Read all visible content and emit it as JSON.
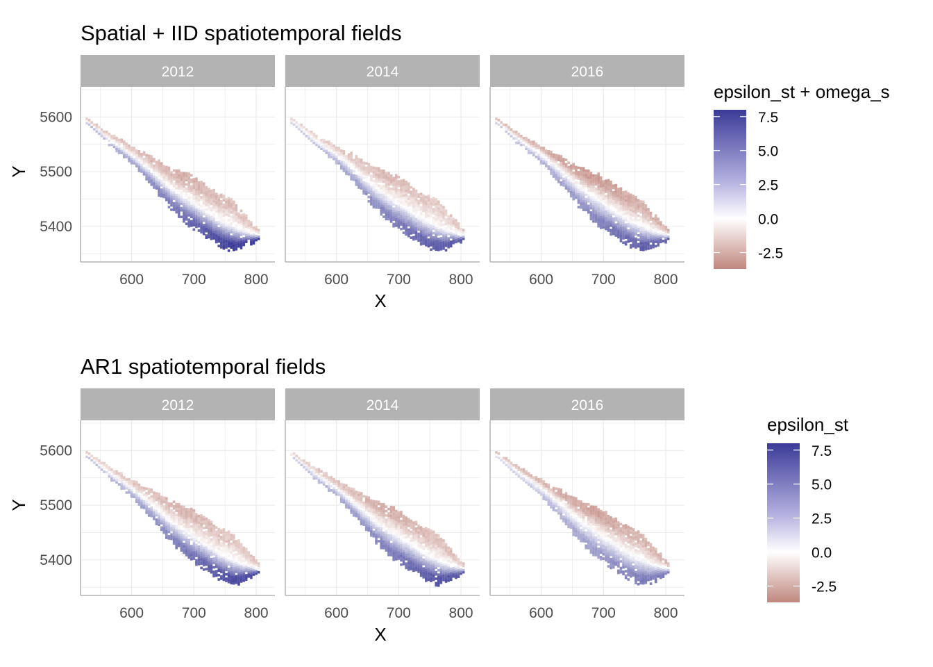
{
  "chart_data": [
    {
      "type": "heatmap",
      "title": "Spatial + IID spatiotemporal fields",
      "facets": [
        "2012",
        "2014",
        "2016"
      ],
      "xlabel": "X",
      "ylabel": "Y",
      "xlim": [
        518,
        830
      ],
      "ylim": [
        5335,
        5655
      ],
      "xticks": [
        "600",
        "700",
        "800"
      ],
      "yticks": [
        "5400",
        "5500",
        "5600"
      ],
      "grid": true,
      "legend": {
        "title": "epsilon_st + omega_s",
        "position": "right",
        "ticks": [
          "7.5",
          "5.0",
          "2.5",
          "0.0",
          "-2.5"
        ],
        "range": [
          -3.7,
          8.0
        ],
        "low_color": "#c0877e",
        "mid_color": "#ffffff",
        "high_color": "#3b3b98"
      },
      "field_pattern": [
        {
          "year": "2012",
          "west_max": 7.8,
          "east_min": -2.4
        },
        {
          "year": "2014",
          "west_max": 6.6,
          "east_min": -2.0
        },
        {
          "year": "2016",
          "west_max": 6.4,
          "east_min": -3.0
        }
      ]
    },
    {
      "type": "heatmap",
      "title": "AR1 spatiotemporal fields",
      "facets": [
        "2012",
        "2014",
        "2016"
      ],
      "xlabel": "X",
      "ylabel": "Y",
      "xlim": [
        518,
        830
      ],
      "ylim": [
        5335,
        5655
      ],
      "xticks": [
        "600",
        "700",
        "800"
      ],
      "yticks": [
        "5400",
        "5500",
        "5600"
      ],
      "grid": true,
      "legend": {
        "title": "epsilon_st",
        "position": "right",
        "ticks": [
          "7.5",
          "5.0",
          "2.5",
          "0.0",
          "-2.5"
        ],
        "range": [
          -3.7,
          8.0
        ],
        "low_color": "#c0877e",
        "mid_color": "#ffffff",
        "high_color": "#3b3b98"
      },
      "field_pattern": [
        {
          "year": "2012",
          "west_max": 7.2,
          "east_min": -2.2
        },
        {
          "year": "2014",
          "west_max": 6.8,
          "east_min": -2.4
        },
        {
          "year": "2016",
          "west_max": 5.2,
          "east_min": -2.8
        }
      ]
    }
  ]
}
